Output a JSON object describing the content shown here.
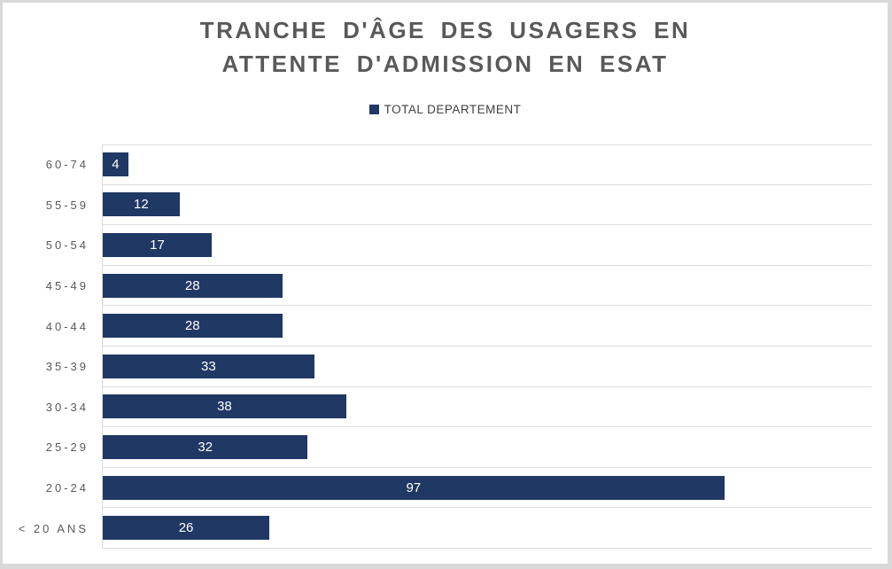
{
  "chart": {
    "title": "TRANCHE D'ÂGE DES USAGERS EN ATTENTE D'ADMISSION EN ESAT",
    "legend_label": "TOTAL DEPARTEMENT"
  },
  "chart_data": {
    "type": "bar",
    "orientation": "horizontal",
    "title": "TRANCHE D'ÂGE DES USAGERS EN ATTENTE D'ADMISSION EN ESAT",
    "legend": [
      "TOTAL DEPARTEMENT"
    ],
    "legend_position": "top-center",
    "categories_top_to_bottom": [
      "60-74",
      "55-59",
      "50-54",
      "45-49",
      "40-44",
      "35-39",
      "30-34",
      "25-29",
      "20-24",
      "< 20 ANS"
    ],
    "values": [
      4,
      12,
      17,
      28,
      28,
      33,
      38,
      32,
      97,
      26
    ],
    "xlim": [
      0,
      120
    ],
    "grid": "horizontal row separators only, no vertical gridlines, no value axis shown",
    "value_labels": "inside bar, centered, white"
  },
  "colors": {
    "bar": "#1F3864",
    "title_text": "#595959",
    "category_label_text": "#595959",
    "legend_text": "#404040",
    "value_label_text": "#FFFFFF",
    "gridline": "#DCDCDC",
    "axis_line": "#D9D9D9",
    "frame": "#D9D9D9",
    "background": "#FFFFFF"
  }
}
